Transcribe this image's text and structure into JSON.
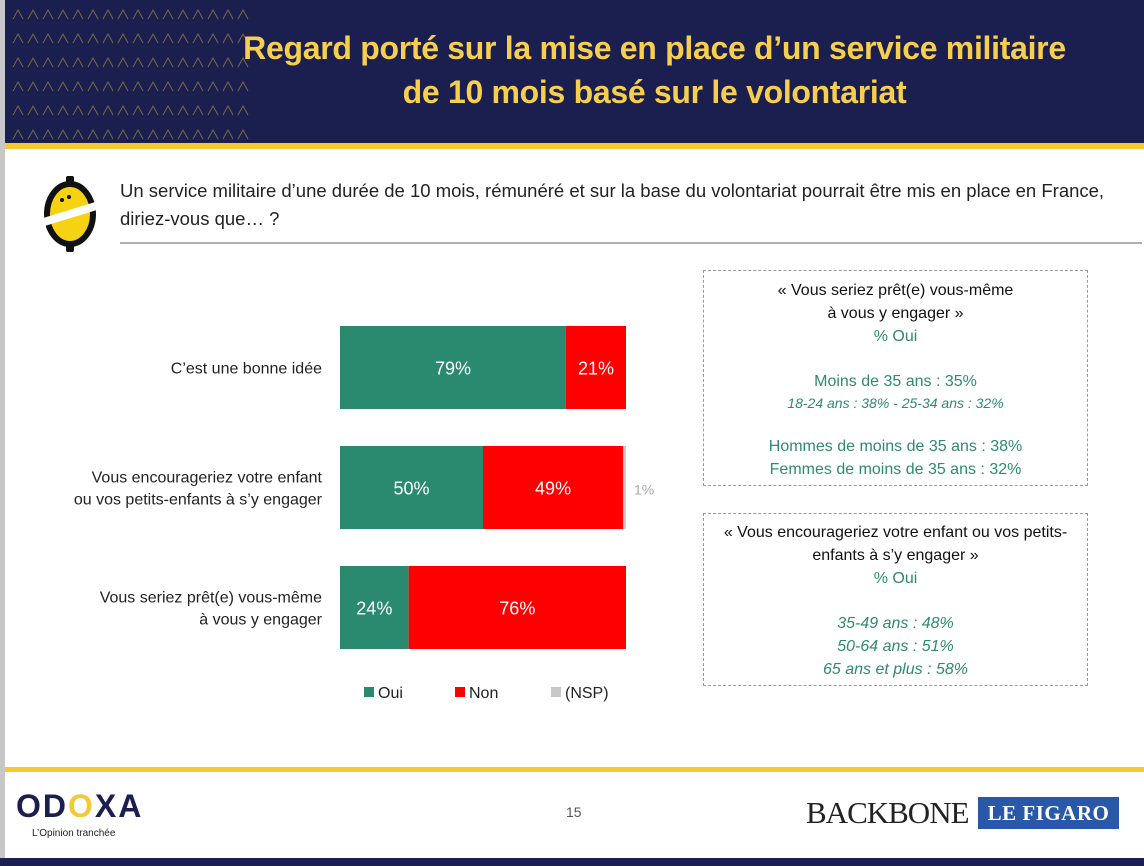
{
  "title": "Regard porté sur la mise en place d’un service militaire\nde 10 mois basé sur le volontariat",
  "question": "Un service militaire d’une durée de 10 mois, rémunéré et sur la base du volontariat pourrait être mis en place en France, diriez-vous que… ?",
  "colors": {
    "navy": "#1b1f4f",
    "yellow": "#f5c933",
    "oui": "#2a8a70",
    "non": "#ff0000",
    "nsp": "#c8c8c8",
    "box_text": "#2e8a73"
  },
  "chart_data": {
    "type": "bar",
    "orientation": "horizontal",
    "stacked": true,
    "categories": [
      "C’est une bonne idée",
      "Vous encourageriez votre enfant\nou vos petits-enfants à s’y engager",
      "Vous seriez prêt(e) vous-même\nà vous y engager"
    ],
    "series": [
      {
        "name": "Oui",
        "values": [
          79,
          50,
          24
        ],
        "labels": [
          "79%",
          "50%",
          "24%"
        ]
      },
      {
        "name": "Non",
        "values": [
          21,
          49,
          76
        ],
        "labels": [
          "21%",
          "49%",
          "76%"
        ]
      },
      {
        "name": "(NSP)",
        "values": [
          0,
          1,
          0
        ],
        "labels": [
          "",
          "1%",
          ""
        ]
      }
    ],
    "xlim": [
      0,
      100
    ],
    "legend_position": "bottom",
    "grid": false
  },
  "box1": {
    "title": "« Vous seriez prêt(e) vous-même\nà vous y engager »",
    "subtitle": "% Oui",
    "line1": "Moins de 35 ans : 35%",
    "line2": "18-24 ans : 38% - 25-34 ans : 32%",
    "line3": "Hommes de moins de 35 ans : 38%",
    "line4": "Femmes de moins de 35 ans : 32%"
  },
  "box2": {
    "title": "« Vous encourageriez votre enfant ou vos petits-\nenfants à s’y engager »",
    "subtitle": "% Oui",
    "line1": "35-49 ans : 48%",
    "line2": "50-64 ans : 51%",
    "line3": "65 ans et plus : 58%"
  },
  "footer": {
    "odoxa_tagline": "L’Opinion tranchée",
    "page_number": "15",
    "backbone": "BACKBONE",
    "figaro": "LE FIGARO"
  }
}
